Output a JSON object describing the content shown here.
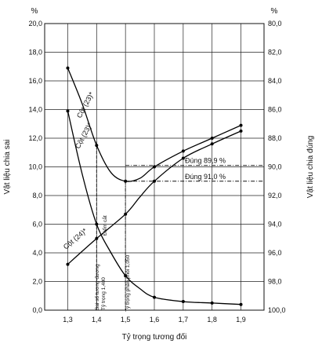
{
  "chart_data": {
    "type": "line",
    "xlabel": "Tỷ trọng tương đối",
    "ylabel_left": "Vật liệu chia sai",
    "ylabel_right": "Vật liệu chia đúng",
    "unit_left": "%",
    "unit_right": "%",
    "x_ticks": [
      "1,3",
      "1,4",
      "1,5",
      "1,6",
      "1,7",
      "1,8",
      "1,9"
    ],
    "y_left_ticks": [
      "0,0",
      "2,0",
      "4,0",
      "6,0",
      "8,0",
      "10,0",
      "12,0",
      "14,0",
      "16,0",
      "18,0",
      "20,0"
    ],
    "y_right_ticks": [
      "100,0",
      "98,0",
      "96,0",
      "94,0",
      "92,0",
      "90,0",
      "88,0",
      "86,0",
      "84,0",
      "82,0",
      "80,0"
    ],
    "xlim": [
      1.22,
      1.98
    ],
    "ylim_left": [
      0,
      20
    ],
    "ylim_right": [
      100,
      80
    ],
    "series": [
      {
        "name": "Cột (23)*",
        "points": [
          [
            1.3,
            16.9
          ],
          [
            1.35,
            14.4
          ],
          [
            1.4,
            11.5
          ],
          [
            1.45,
            9.6
          ],
          [
            1.5,
            9.0
          ],
          [
            1.55,
            9.2
          ],
          [
            1.6,
            10.0
          ],
          [
            1.7,
            11.1
          ],
          [
            1.8,
            12.0
          ],
          [
            1.9,
            12.9
          ]
        ]
      },
      {
        "name": "Cột (23)*",
        "points": [
          [
            1.3,
            13.9
          ],
          [
            1.35,
            9.5
          ],
          [
            1.4,
            6.0
          ],
          [
            1.45,
            4.0
          ],
          [
            1.5,
            2.4
          ],
          [
            1.55,
            1.5
          ],
          [
            1.6,
            0.9
          ],
          [
            1.7,
            0.6
          ],
          [
            1.8,
            0.5
          ],
          [
            1.9,
            0.4
          ]
        ]
      },
      {
        "name": "Cột (24)*",
        "points": [
          [
            1.3,
            3.2
          ],
          [
            1.4,
            5.0
          ],
          [
            1.5,
            6.7
          ],
          [
            1.55,
            7.9
          ],
          [
            1.6,
            9.0
          ],
          [
            1.7,
            10.6
          ],
          [
            1.8,
            11.6
          ],
          [
            1.9,
            12.5
          ]
        ]
      }
    ],
    "annotations": [
      {
        "text": "Đúng 89,9 %",
        "y_right": 89.9
      },
      {
        "text": "Đúng 91,0 %",
        "y_right": 91.0
      },
      {
        "text": "Sai số tương đương",
        "x": 1.4
      },
      {
        "text": "Tỷ trọng 1,400",
        "x": 1.4
      },
      {
        "text": "Điểm cắt",
        "x": 1.4
      },
      {
        "text": "Tỷ trọng phân phối 1,050",
        "x": 1.5
      }
    ]
  }
}
